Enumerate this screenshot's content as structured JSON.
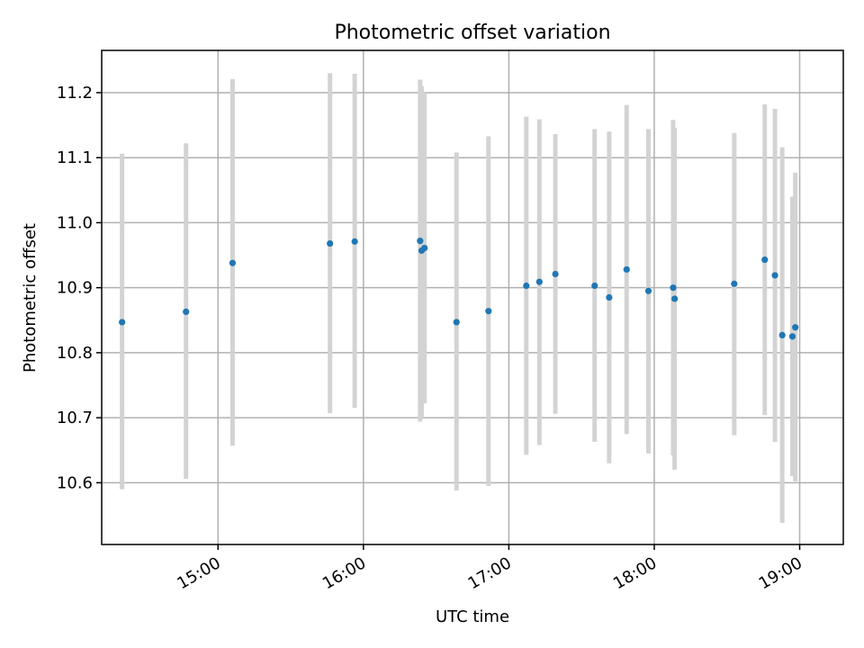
{
  "chart_data": {
    "type": "scatter",
    "title": "Photometric offset variation",
    "xlabel": "UTC time",
    "ylabel": "Photometric offset",
    "x_unit": "hours",
    "xlim": [
      14.2,
      19.3
    ],
    "ylim": [
      10.505,
      11.265
    ],
    "x_ticks": [
      {
        "value": 15.0,
        "label": "15:00"
      },
      {
        "value": 16.0,
        "label": "16:00"
      },
      {
        "value": 17.0,
        "label": "17:00"
      },
      {
        "value": 18.0,
        "label": "18:00"
      },
      {
        "value": 19.0,
        "label": "19:00"
      }
    ],
    "y_ticks": [
      {
        "value": 10.6,
        "label": "10.6"
      },
      {
        "value": 10.7,
        "label": "10.7"
      },
      {
        "value": 10.8,
        "label": "10.8"
      },
      {
        "value": 10.9,
        "label": "10.9"
      },
      {
        "value": 11.0,
        "label": "11.0"
      },
      {
        "value": 11.1,
        "label": "11.1"
      },
      {
        "value": 11.2,
        "label": "11.2"
      }
    ],
    "grid": true,
    "point_color": "#1f77b4",
    "errorbar_color": "#d3d3d3",
    "points": [
      {
        "x": 14.34,
        "y": 10.847,
        "ylow": 10.59,
        "yhigh": 11.106
      },
      {
        "x": 14.78,
        "y": 10.863,
        "ylow": 10.606,
        "yhigh": 11.122
      },
      {
        "x": 15.1,
        "y": 10.938,
        "ylow": 10.657,
        "yhigh": 11.221
      },
      {
        "x": 15.77,
        "y": 10.968,
        "ylow": 10.707,
        "yhigh": 11.23
      },
      {
        "x": 15.94,
        "y": 10.971,
        "ylow": 10.715,
        "yhigh": 11.229
      },
      {
        "x": 16.39,
        "y": 10.972,
        "ylow": 10.694,
        "yhigh": 11.22
      },
      {
        "x": 16.4,
        "y": 10.957,
        "ylow": 10.7,
        "yhigh": 11.21
      },
      {
        "x": 16.42,
        "y": 10.961,
        "ylow": 10.722,
        "yhigh": 11.2
      },
      {
        "x": 16.64,
        "y": 10.847,
        "ylow": 10.588,
        "yhigh": 11.108
      },
      {
        "x": 16.86,
        "y": 10.864,
        "ylow": 10.595,
        "yhigh": 11.133
      },
      {
        "x": 17.12,
        "y": 10.903,
        "ylow": 10.643,
        "yhigh": 11.163
      },
      {
        "x": 17.21,
        "y": 10.909,
        "ylow": 10.658,
        "yhigh": 11.159
      },
      {
        "x": 17.32,
        "y": 10.921,
        "ylow": 10.706,
        "yhigh": 11.136
      },
      {
        "x": 17.59,
        "y": 10.903,
        "ylow": 10.663,
        "yhigh": 11.144
      },
      {
        "x": 17.69,
        "y": 10.885,
        "ylow": 10.63,
        "yhigh": 11.14
      },
      {
        "x": 17.81,
        "y": 10.928,
        "ylow": 10.675,
        "yhigh": 11.181
      },
      {
        "x": 17.96,
        "y": 10.895,
        "ylow": 10.645,
        "yhigh": 11.144
      },
      {
        "x": 18.13,
        "y": 10.9,
        "ylow": 10.642,
        "yhigh": 11.158
      },
      {
        "x": 18.14,
        "y": 10.883,
        "ylow": 10.62,
        "yhigh": 11.146
      },
      {
        "x": 18.55,
        "y": 10.906,
        "ylow": 10.673,
        "yhigh": 11.138
      },
      {
        "x": 18.76,
        "y": 10.943,
        "ylow": 10.704,
        "yhigh": 11.182
      },
      {
        "x": 18.83,
        "y": 10.919,
        "ylow": 10.663,
        "yhigh": 11.175
      },
      {
        "x": 18.88,
        "y": 10.827,
        "ylow": 10.538,
        "yhigh": 11.116
      },
      {
        "x": 18.95,
        "y": 10.825,
        "ylow": 10.61,
        "yhigh": 11.04
      },
      {
        "x": 18.97,
        "y": 10.839,
        "ylow": 10.602,
        "yhigh": 11.077
      }
    ]
  }
}
